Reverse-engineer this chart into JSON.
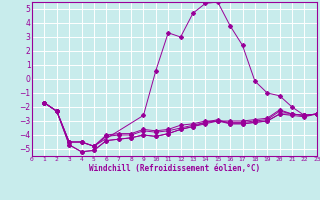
{
  "xlabel": "Windchill (Refroidissement éolien,°C)",
  "bg_color": "#c8ecec",
  "grid_color": "#b0d8d8",
  "line_color": "#990099",
  "xlim": [
    0,
    23
  ],
  "ylim": [
    -5.5,
    5.5
  ],
  "xticks": [
    0,
    1,
    2,
    3,
    4,
    5,
    6,
    7,
    8,
    9,
    10,
    11,
    12,
    13,
    14,
    15,
    16,
    17,
    18,
    19,
    20,
    21,
    22,
    23
  ],
  "yticks": [
    -5,
    -4,
    -3,
    -2,
    -1,
    0,
    1,
    2,
    3,
    4,
    5
  ],
  "curve_main_x": [
    1,
    2,
    3,
    4,
    5,
    9,
    10,
    11,
    12,
    13,
    14,
    15,
    16,
    17,
    18,
    19,
    20,
    21,
    22,
    23
  ],
  "curve_main_y": [
    -1.7,
    -2.3,
    -4.5,
    -4.5,
    -4.8,
    -2.6,
    0.6,
    3.3,
    3.0,
    4.7,
    5.4,
    5.5,
    3.8,
    2.4,
    -0.15,
    -1.0,
    -1.2,
    -2.0,
    -2.6,
    -2.5
  ],
  "line1_x": [
    1,
    2,
    3,
    4,
    5,
    6,
    7,
    8,
    9,
    10,
    11,
    12,
    13,
    14,
    15,
    16,
    17,
    18,
    19,
    20,
    21,
    22,
    23
  ],
  "line1_y": [
    -1.7,
    -2.3,
    -4.5,
    -4.5,
    -4.8,
    -4.0,
    -3.9,
    -3.9,
    -3.6,
    -3.7,
    -3.6,
    -3.3,
    -3.2,
    -3.0,
    -3.0,
    -3.0,
    -3.0,
    -2.9,
    -2.8,
    -2.2,
    -2.5,
    -2.6,
    -2.5
  ],
  "line2_x": [
    1,
    2,
    3,
    4,
    5,
    6,
    7,
    8,
    9,
    10,
    11,
    12,
    13,
    14,
    15,
    16,
    17,
    18,
    19,
    20,
    21,
    22,
    23
  ],
  "line2_y": [
    -1.7,
    -2.3,
    -4.5,
    -4.5,
    -4.8,
    -4.1,
    -4.0,
    -4.0,
    -3.7,
    -3.8,
    -3.7,
    -3.5,
    -3.3,
    -3.1,
    -3.0,
    -3.1,
    -3.1,
    -3.0,
    -2.9,
    -2.3,
    -2.5,
    -2.6,
    -2.5
  ],
  "line3_x": [
    1,
    2,
    3,
    4,
    5,
    6,
    7,
    8,
    9,
    10,
    11,
    12,
    13,
    14,
    15,
    16,
    17,
    18,
    19,
    20,
    21,
    22,
    23
  ],
  "line3_y": [
    -1.7,
    -2.3,
    -4.7,
    -5.2,
    -5.1,
    -4.4,
    -4.3,
    -4.2,
    -4.0,
    -4.1,
    -3.9,
    -3.6,
    -3.4,
    -3.2,
    -3.0,
    -3.2,
    -3.2,
    -3.1,
    -3.0,
    -2.5,
    -2.5,
    -2.6,
    -2.5
  ],
  "line4_x": [
    1,
    2,
    3,
    4,
    5,
    6,
    7,
    8,
    9,
    10,
    11,
    12,
    13,
    14,
    15,
    16,
    17,
    18,
    19,
    20,
    21,
    22,
    23
  ],
  "line4_y": [
    -1.7,
    -2.3,
    -4.7,
    -5.2,
    -5.1,
    -4.4,
    -4.3,
    -4.2,
    -4.0,
    -4.1,
    -3.9,
    -3.6,
    -3.4,
    -3.1,
    -2.9,
    -3.2,
    -3.2,
    -3.1,
    -3.0,
    -2.5,
    -2.6,
    -2.7,
    -2.5
  ]
}
